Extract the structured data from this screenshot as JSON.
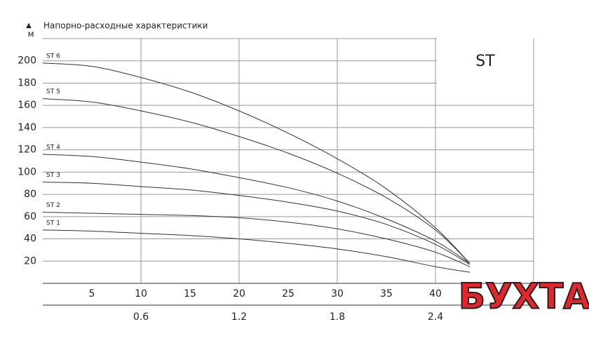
{
  "chart_data": {
    "type": "line",
    "title": "Напорно-расходные характеристики",
    "y_label": "м",
    "badge": "ST",
    "watermark": "БУХТА",
    "x": [
      0,
      5,
      10,
      15,
      20,
      25,
      30,
      35,
      40,
      43.5
    ],
    "series": [
      {
        "name": "ST 6",
        "color": "#333333",
        "values": [
          198,
          195,
          185,
          172,
          155,
          135,
          112,
          85,
          50,
          18
        ]
      },
      {
        "name": "ST 5",
        "color": "#333333",
        "values": [
          166,
          163,
          155,
          145,
          132,
          117,
          99,
          77,
          48,
          18
        ]
      },
      {
        "name": "ST 4",
        "color": "#333333",
        "values": [
          116,
          114,
          109,
          103,
          95,
          86,
          74,
          58,
          38,
          18
        ]
      },
      {
        "name": "ST 3",
        "color": "#333333",
        "values": [
          91,
          90,
          87,
          84,
          79,
          73,
          65,
          53,
          35,
          17
        ]
      },
      {
        "name": "ST 2",
        "color": "#333333",
        "values": [
          64,
          63,
          62,
          61,
          59,
          55,
          49,
          40,
          28,
          15
        ]
      },
      {
        "name": "ST 1",
        "color": "#333333",
        "values": [
          48,
          47,
          45,
          43,
          40,
          36,
          31,
          24,
          15,
          10
        ]
      }
    ],
    "xlim": [
      0,
      50
    ],
    "xticks": [
      5,
      10,
      15,
      20,
      25,
      30,
      35,
      40
    ],
    "xgrid": [
      10,
      20,
      30,
      40,
      50
    ],
    "x2lim": [
      0,
      3
    ],
    "x2ticks": [
      0.6,
      1.2,
      1.8,
      2.4
    ],
    "ylim": [
      0,
      220
    ],
    "yticks": [
      20,
      40,
      60,
      80,
      100,
      120,
      140,
      160,
      180,
      200
    ],
    "ygrid_top": 220,
    "grid": true
  }
}
